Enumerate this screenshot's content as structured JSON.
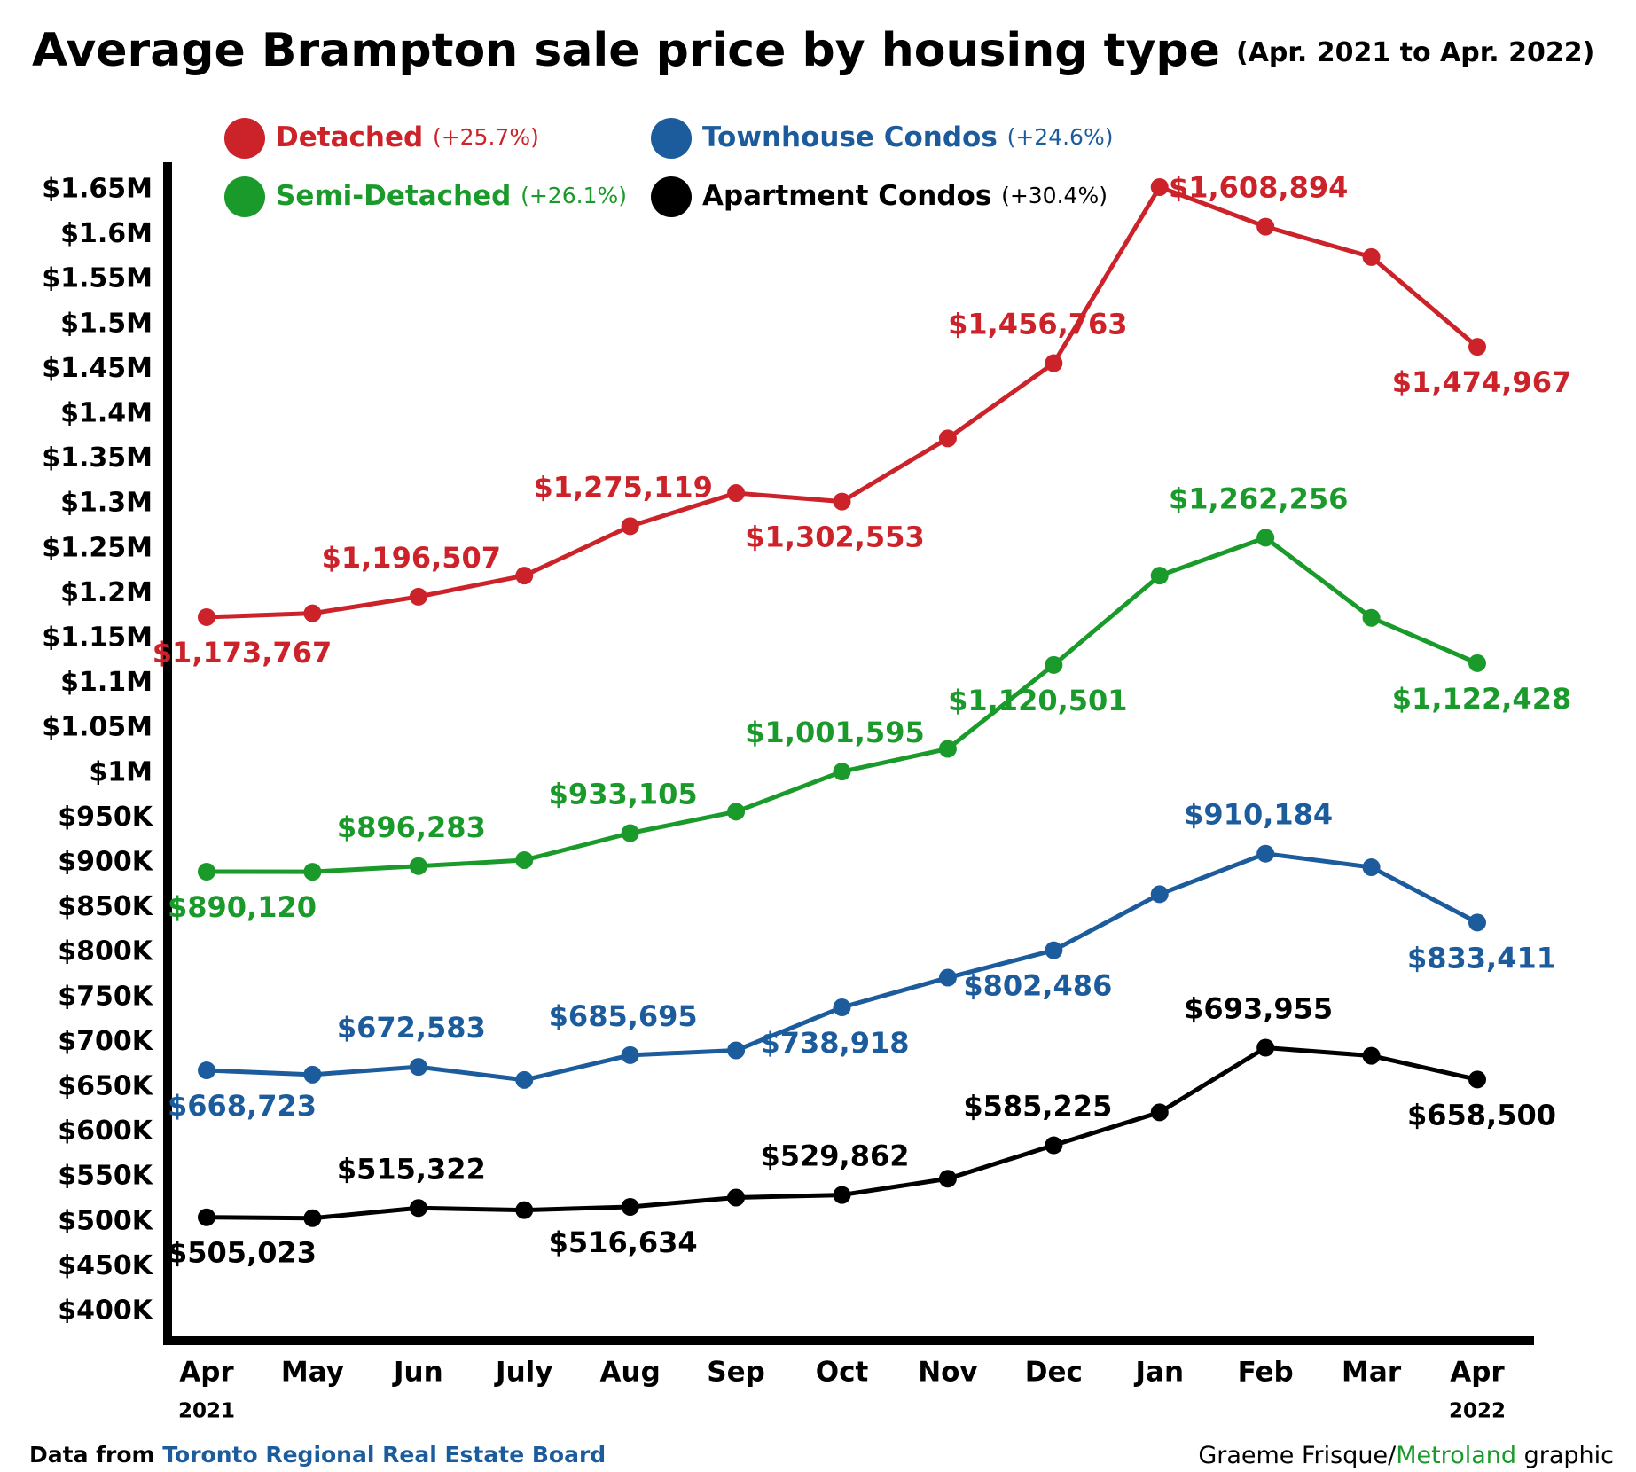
{
  "chart_data": {
    "type": "line",
    "title": "Average Brampton sale price by housing type",
    "subtitle": "(Apr. 2021 to Apr. 2022)",
    "categories": [
      "Apr",
      "May",
      "Jun",
      "July",
      "Aug",
      "Sep",
      "Oct",
      "Nov",
      "Dec",
      "Jan",
      "Feb",
      "Mar",
      "Apr"
    ],
    "category_years": [
      "2021",
      null,
      null,
      null,
      null,
      null,
      null,
      null,
      null,
      null,
      null,
      null,
      "2022"
    ],
    "series": [
      {
        "name": "Detached",
        "change": "(+25.7%)",
        "color": "#cc2229",
        "values": [
          1173767,
          1178000,
          1196507,
          1220000,
          1275119,
          1312000,
          1302553,
          1373000,
          1456763,
          1653000,
          1608894,
          1575000,
          1474967
        ],
        "value_labels": [
          "$1,173,767",
          null,
          "$1,196,507",
          null,
          "$1,275,119",
          null,
          "$1,302,553",
          null,
          "$1,456,763",
          null,
          "$1,608,894",
          null,
          "$1,474,967"
        ]
      },
      {
        "name": "Semi-Detached",
        "change": "(+26.1%)",
        "color": "#1a9a2a",
        "values": [
          890120,
          890000,
          896283,
          903000,
          933105,
          957000,
          1001595,
          1027000,
          1120501,
          1220000,
          1262256,
          1173000,
          1122428
        ],
        "value_labels": [
          "$890,120",
          null,
          "$896,283",
          null,
          "$933,105",
          null,
          "$1,001,595",
          null,
          "$1,120,501",
          null,
          "$1,262,256",
          null,
          "$1,122,428"
        ]
      },
      {
        "name": "Townhouse Condos",
        "change": "(+24.6%)",
        "color": "#1c5c9c",
        "values": [
          668723,
          664000,
          672583,
          658000,
          685695,
          691000,
          738918,
          772000,
          802486,
          865000,
          910184,
          895000,
          833411
        ],
        "value_labels": [
          "$668,723",
          null,
          "$672,583",
          null,
          "$685,695",
          null,
          "$738,918",
          null,
          "$802,486",
          null,
          "$910,184",
          null,
          "$833,411"
        ]
      },
      {
        "name": "Apartment Condos",
        "change": "(+30.4%)",
        "color": "#000000",
        "values": [
          505023,
          504000,
          515322,
          513000,
          516634,
          527000,
          529862,
          548000,
          585225,
          622000,
          693955,
          685000,
          658500
        ],
        "value_labels": [
          "$505,023",
          null,
          "$515,322",
          null,
          "$516,634",
          null,
          "$529,862",
          null,
          "$585,225",
          null,
          "$693,955",
          null,
          "$658,500"
        ]
      }
    ],
    "ylim": [
      400000,
      1650000
    ],
    "yticks": [
      {
        "value": 400000,
        "label": "$400K"
      },
      {
        "value": 450000,
        "label": "$450K"
      },
      {
        "value": 500000,
        "label": "$500K"
      },
      {
        "value": 550000,
        "label": "$550K"
      },
      {
        "value": 600000,
        "label": "$600K"
      },
      {
        "value": 650000,
        "label": "$650K"
      },
      {
        "value": 700000,
        "label": "$700K"
      },
      {
        "value": 750000,
        "label": "$750K"
      },
      {
        "value": 800000,
        "label": "$800K"
      },
      {
        "value": 850000,
        "label": "$850K"
      },
      {
        "value": 900000,
        "label": "$900K"
      },
      {
        "value": 950000,
        "label": "$950K"
      },
      {
        "value": 1000000,
        "label": "$1M"
      },
      {
        "value": 1050000,
        "label": "$1.05M"
      },
      {
        "value": 1100000,
        "label": "$1.1M"
      },
      {
        "value": 1150000,
        "label": "$1.15M"
      },
      {
        "value": 1200000,
        "label": "$1.2M"
      },
      {
        "value": 1250000,
        "label": "$1.25M"
      },
      {
        "value": 1300000,
        "label": "$1.3M"
      },
      {
        "value": 1350000,
        "label": "$1.35M"
      },
      {
        "value": 1400000,
        "label": "$1.4M"
      },
      {
        "value": 1450000,
        "label": "$1.45M"
      },
      {
        "value": 1500000,
        "label": "$1.5M"
      },
      {
        "value": 1550000,
        "label": "$1.55M"
      },
      {
        "value": 1600000,
        "label": "$1.6M"
      },
      {
        "value": 1650000,
        "label": "$1.65M"
      }
    ],
    "grid": false,
    "source": {
      "prefix": "Data from",
      "org": "Toronto Regional Real Estate Board"
    },
    "credit": {
      "author": "Graeme Frisque/",
      "outlet": "Metroland",
      "suffix": "graphic"
    }
  }
}
